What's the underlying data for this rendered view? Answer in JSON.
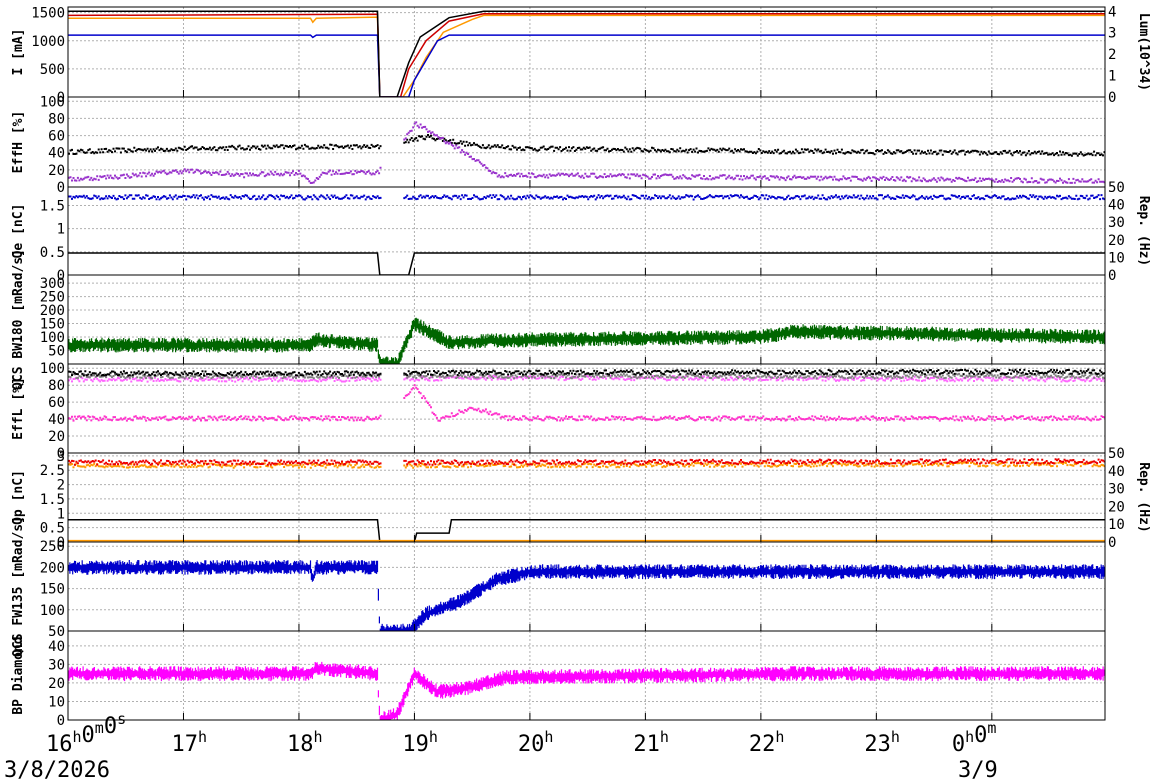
{
  "chart_data": {
    "type": "line",
    "x_axis": {
      "ticks": [
        {
          "h": "16",
          "m": "0",
          "s": "0"
        },
        {
          "h": "17"
        },
        {
          "h": "18"
        },
        {
          "h": "19"
        },
        {
          "h": "20"
        },
        {
          "h": "21"
        },
        {
          "h": "22"
        },
        {
          "h": "23"
        },
        {
          "h": "0",
          "m": "0"
        }
      ],
      "range_hours": [
        16.0,
        24.98
      ],
      "date_left": "3/8/2026",
      "date_right": "3/9"
    },
    "panels": [
      {
        "id": "current",
        "ylabel_left": "I [mA]",
        "ylabel_right": "Lum(10^34)",
        "left_ticks": [
          "0",
          "500",
          "1000",
          "1500"
        ],
        "left_range": [
          0,
          1600
        ],
        "right_ticks": [
          "0",
          "1",
          "2",
          "3",
          "4"
        ],
        "right_range": [
          0,
          4.2
        ],
        "series": [
          {
            "color": "#ff9900",
            "axis": "left",
            "points": [
              [
                16.0,
                1400
              ],
              [
                18.1,
                1400
              ],
              [
                18.12,
                1330
              ],
              [
                18.15,
                1400
              ],
              [
                18.68,
                1420
              ],
              [
                18.7,
                0
              ],
              [
                18.9,
                0
              ],
              [
                19.0,
                300
              ],
              [
                19.1,
                700
              ],
              [
                19.25,
                1150
              ],
              [
                19.5,
                1380
              ],
              [
                19.6,
                1450
              ],
              [
                24.98,
                1450
              ]
            ]
          },
          {
            "color": "#cc0000",
            "axis": "left",
            "points": [
              [
                16.0,
                1450
              ],
              [
                18.68,
                1470
              ],
              [
                18.7,
                0
              ],
              [
                18.88,
                0
              ],
              [
                18.95,
                500
              ],
              [
                19.1,
                1000
              ],
              [
                19.3,
                1350
              ],
              [
                19.6,
                1480
              ],
              [
                24.98,
                1480
              ]
            ]
          },
          {
            "color": "#0000cc",
            "axis": "left",
            "points": [
              [
                16.0,
                1100
              ],
              [
                18.1,
                1100
              ],
              [
                18.12,
                1060
              ],
              [
                18.15,
                1100
              ],
              [
                18.68,
                1100
              ],
              [
                18.7,
                0
              ],
              [
                18.95,
                0
              ],
              [
                19.0,
                300
              ],
              [
                19.2,
                1000
              ],
              [
                19.3,
                1100
              ],
              [
                24.98,
                1100
              ]
            ]
          },
          {
            "color": "#000000",
            "axis": "right",
            "points": [
              [
                16.0,
                4.0
              ],
              [
                18.68,
                4.0
              ],
              [
                18.7,
                0
              ],
              [
                18.85,
                0
              ],
              [
                18.95,
                1.6
              ],
              [
                19.05,
                2.8
              ],
              [
                19.3,
                3.7
              ],
              [
                19.6,
                4.0
              ],
              [
                24.98,
                4.0
              ]
            ]
          }
        ]
      },
      {
        "id": "effH",
        "ylabel_left": "EffH [%]",
        "left_ticks": [
          "0",
          "20",
          "40",
          "60",
          "80",
          "100"
        ],
        "left_range": [
          0,
          105
        ],
        "series": [
          {
            "color": "#000000",
            "style": "dots",
            "points": [
              [
                16.0,
                42
              ],
              [
                17.0,
                46
              ],
              [
                18.0,
                48
              ],
              [
                18.68,
                48
              ],
              [
                19.1,
                60
              ],
              [
                19.5,
                50
              ],
              [
                20.0,
                46
              ],
              [
                22.0,
                43
              ],
              [
                24.98,
                40
              ]
            ]
          },
          {
            "color": "#9933cc",
            "style": "dots",
            "points": [
              [
                16.0,
                10
              ],
              [
                16.5,
                14
              ],
              [
                17.0,
                20
              ],
              [
                17.5,
                15
              ],
              [
                18.0,
                18
              ],
              [
                18.12,
                5
              ],
              [
                18.2,
                18
              ],
              [
                18.68,
                18
              ],
              [
                19.0,
                75
              ],
              [
                19.2,
                60
              ],
              [
                19.5,
                35
              ],
              [
                19.7,
                15
              ],
              [
                20.0,
                15
              ],
              [
                22.0,
                12
              ],
              [
                24.98,
                8
              ]
            ]
          }
        ]
      },
      {
        "id": "qe",
        "ylabel_left": "Qe [nC]",
        "ylabel_right": "Rep. (Hz)",
        "left_ticks": [
          "0",
          "0.5",
          "1",
          "1.5"
        ],
        "left_range": [
          0,
          1.9
        ],
        "right_ticks": [
          "0",
          "10",
          "20",
          "30",
          "40",
          "50"
        ],
        "right_range": [
          0,
          50
        ],
        "series": [
          {
            "color": "#0000cc",
            "axis": "left",
            "style": "dots",
            "points": [
              [
                16.0,
                1.7
              ],
              [
                18.68,
                1.7
              ],
              [
                18.9,
                1.7
              ],
              [
                24.98,
                1.7
              ]
            ]
          },
          {
            "color": "#000000",
            "axis": "right",
            "points": [
              [
                16.0,
                12.5
              ],
              [
                18.68,
                12.5
              ],
              [
                18.7,
                0
              ],
              [
                18.95,
                0
              ],
              [
                18.97,
                5
              ],
              [
                19.0,
                12.5
              ],
              [
                24.98,
                12.5
              ]
            ]
          }
        ]
      },
      {
        "id": "bw180",
        "ylabel_left": "QCS BW180 [mRad/s]",
        "left_ticks": [
          "50",
          "100",
          "150",
          "200",
          "250",
          "300"
        ],
        "left_range": [
          0,
          330
        ],
        "series": [
          {
            "color": "#006600",
            "style": "noise",
            "points": [
              [
                16.0,
                70
              ],
              [
                18.1,
                70
              ],
              [
                18.15,
                90
              ],
              [
                18.68,
                70
              ],
              [
                18.7,
                0
              ],
              [
                18.85,
                0
              ],
              [
                19.0,
                150
              ],
              [
                19.3,
                80
              ],
              [
                20.0,
                90
              ],
              [
                22.0,
                100
              ],
              [
                22.3,
                120
              ],
              [
                24.98,
                100
              ]
            ]
          }
        ]
      },
      {
        "id": "effL",
        "ylabel_left": "EffL [%]",
        "left_ticks": [
          "0",
          "20",
          "40",
          "60",
          "80",
          "100"
        ],
        "left_range": [
          0,
          105
        ],
        "series": [
          {
            "color": "#ff33cc",
            "style": "dots",
            "points": [
              [
                16.0,
                42
              ],
              [
                18.68,
                42
              ],
              [
                19.0,
                80
              ],
              [
                19.2,
                40
              ],
              [
                19.5,
                55
              ],
              [
                19.8,
                42
              ],
              [
                24.98,
                42
              ]
            ]
          },
          {
            "color": "#ff66ff",
            "style": "dots",
            "points": [
              [
                16.0,
                88
              ],
              [
                18.68,
                88
              ],
              [
                19.5,
                90
              ],
              [
                24.98,
                88
              ]
            ]
          },
          {
            "color": "#808080",
            "style": "dots",
            "points": [
              [
                16.0,
                92
              ],
              [
                18.68,
                92
              ],
              [
                19.5,
                92
              ],
              [
                24.98,
                92
              ]
            ]
          },
          {
            "color": "#000000",
            "style": "dots",
            "points": [
              [
                16.0,
                95
              ],
              [
                18.68,
                95
              ],
              [
                19.5,
                96
              ],
              [
                24.98,
                97
              ]
            ]
          }
        ]
      },
      {
        "id": "qp",
        "ylabel_left": "Qp [nC]",
        "ylabel_right": "Rep. (Hz)",
        "left_ticks": [
          "0",
          "0.5",
          "1",
          "1.5",
          "2",
          "2.5",
          "3"
        ],
        "left_range": [
          0,
          3.1
        ],
        "right_ticks": [
          "0",
          "10",
          "20",
          "30",
          "40",
          "50"
        ],
        "right_range": [
          0,
          50
        ],
        "series": [
          {
            "color": "#ff9900",
            "axis": "left",
            "style": "dots",
            "points": [
              [
                16.0,
                2.7
              ],
              [
                18.68,
                2.7
              ],
              [
                18.9,
                2.7
              ],
              [
                24.98,
                2.75
              ]
            ]
          },
          {
            "color": "#ee0000",
            "axis": "left",
            "style": "dots",
            "points": [
              [
                16.0,
                2.8
              ],
              [
                18.68,
                2.8
              ],
              [
                18.9,
                2.8
              ],
              [
                24.98,
                2.85
              ]
            ]
          },
          {
            "color": "#000000",
            "axis": "right",
            "points": [
              [
                16.0,
                12.5
              ],
              [
                18.68,
                12.5
              ],
              [
                18.7,
                0
              ],
              [
                19.0,
                0
              ],
              [
                19.02,
                5
              ],
              [
                19.3,
                5
              ],
              [
                19.32,
                12.5
              ],
              [
                24.98,
                12.5
              ]
            ]
          },
          {
            "color": "#ff9900",
            "axis": "left",
            "points": [
              [
                16.0,
                0.05
              ],
              [
                24.98,
                0.05
              ]
            ]
          }
        ]
      },
      {
        "id": "fw135",
        "ylabel_left": "QCS FW135 [mRad/s]",
        "left_ticks": [
          "50",
          "100",
          "150",
          "200",
          "250"
        ],
        "left_range": [
          50,
          260
        ],
        "series": [
          {
            "color": "#0000cc",
            "style": "noise",
            "points": [
              [
                16.0,
                200
              ],
              [
                18.1,
                200
              ],
              [
                18.12,
                170
              ],
              [
                18.15,
                200
              ],
              [
                18.68,
                200
              ],
              [
                18.7,
                50
              ],
              [
                18.95,
                50
              ],
              [
                19.1,
                90
              ],
              [
                19.4,
                120
              ],
              [
                19.7,
                170
              ],
              [
                20.0,
                190
              ],
              [
                24.98,
                190
              ]
            ]
          }
        ]
      },
      {
        "id": "diamond",
        "ylabel_left": "BP Diamond",
        "left_ticks": [
          "0",
          "10",
          "20",
          "30",
          "40"
        ],
        "left_range": [
          0,
          48
        ],
        "series": [
          {
            "color": "#ff00ff",
            "style": "noise",
            "points": [
              [
                16.0,
                25
              ],
              [
                18.1,
                25
              ],
              [
                18.15,
                28
              ],
              [
                18.68,
                25
              ],
              [
                18.7,
                0
              ],
              [
                18.85,
                3
              ],
              [
                19.0,
                25
              ],
              [
                19.2,
                15
              ],
              [
                19.5,
                18
              ],
              [
                19.8,
                23
              ],
              [
                22.3,
                25
              ],
              [
                24.98,
                25
              ]
            ]
          }
        ]
      }
    ]
  }
}
